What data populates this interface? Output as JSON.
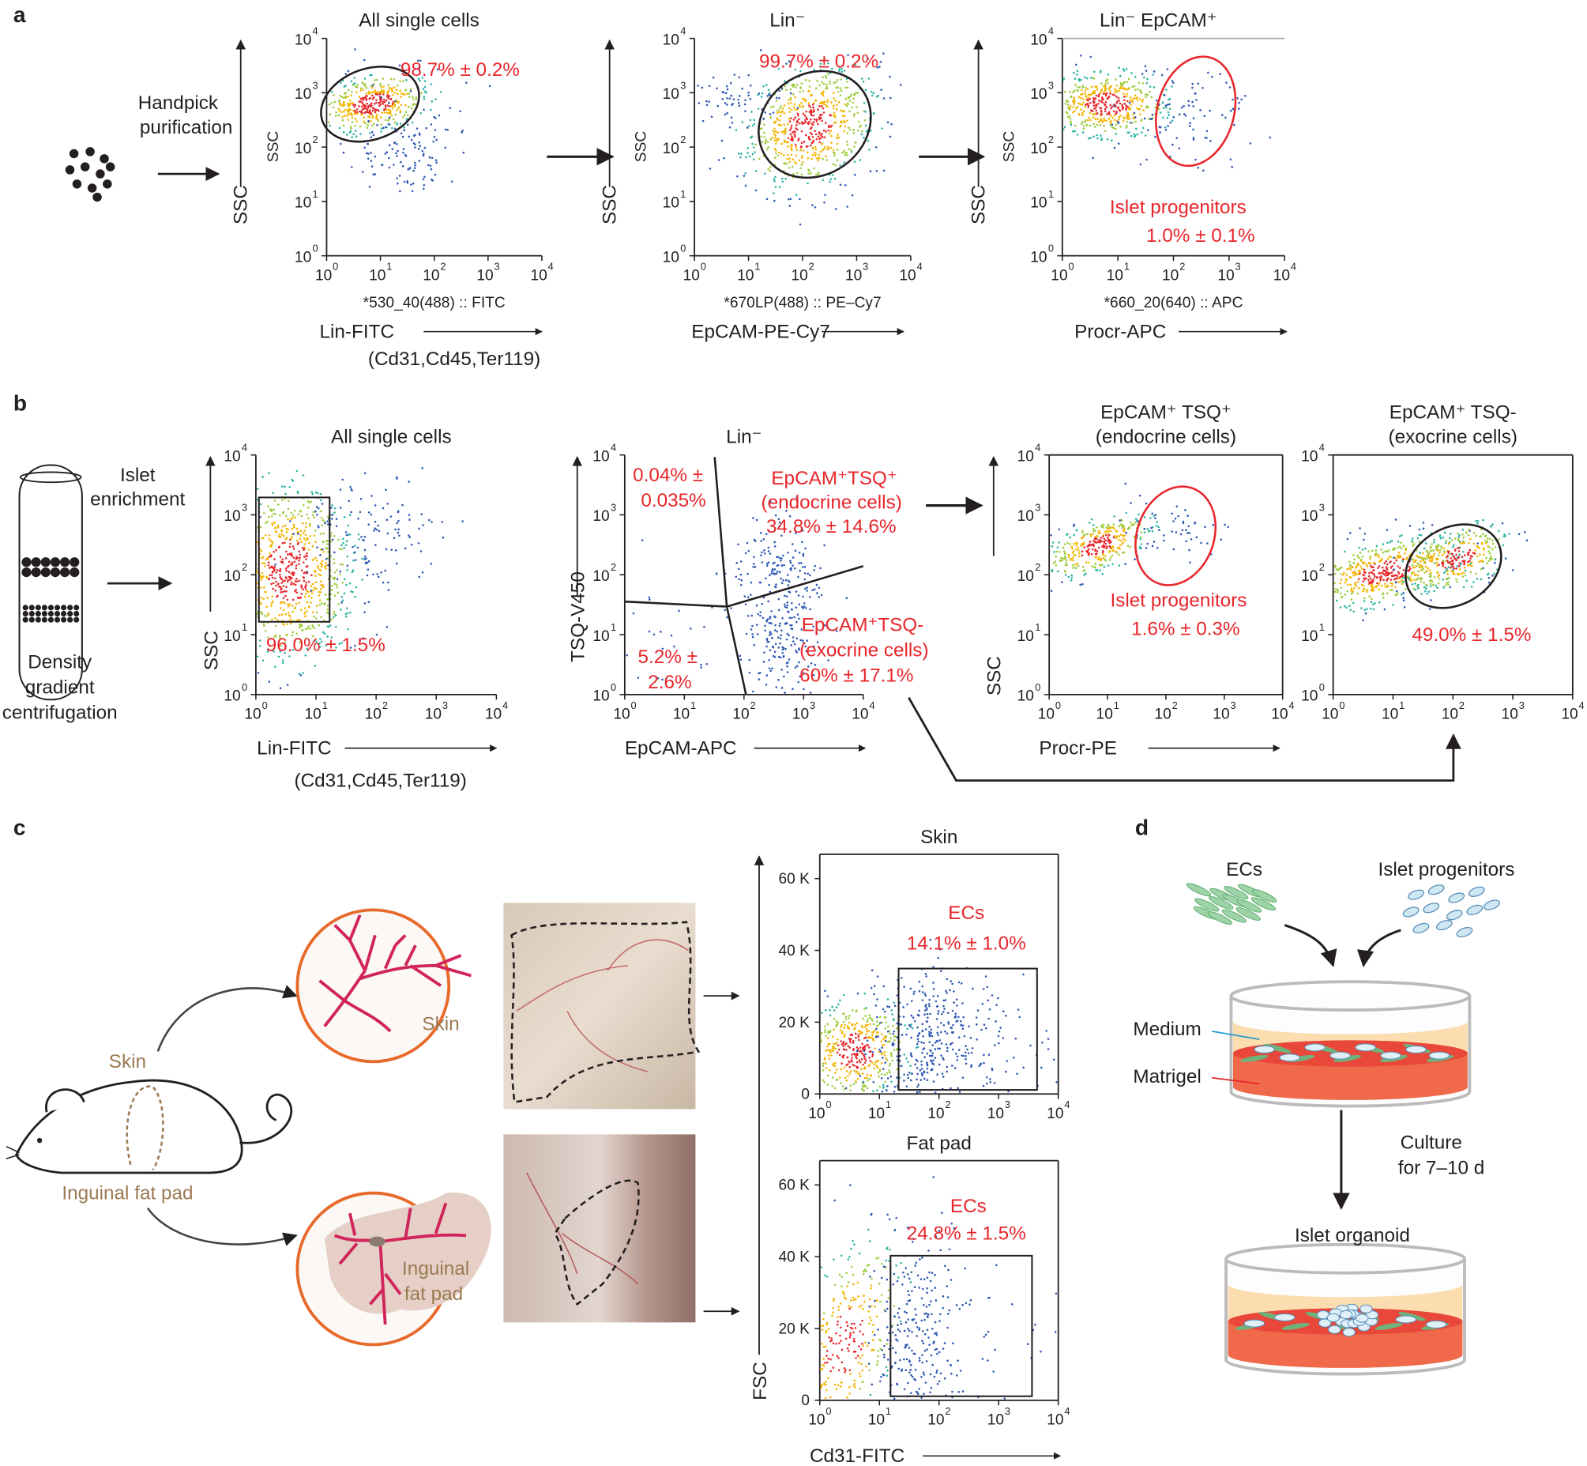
{
  "panel_labels": [
    "a",
    "b",
    "c",
    "d"
  ],
  "log_ticks": [
    {
      "base": "10",
      "exp": "0"
    },
    {
      "base": "10",
      "exp": "1"
    },
    {
      "base": "10",
      "exp": "2"
    },
    {
      "base": "10",
      "exp": "3"
    },
    {
      "base": "10",
      "exp": "4"
    }
  ],
  "linear_ticks": [
    "0",
    "20 K",
    "40 K",
    "60 K"
  ],
  "panel_a": {
    "step": [
      "Handpick",
      "purification"
    ],
    "y_axis": "SSC",
    "plots": [
      {
        "title": "All single cells",
        "y_small": "SSC",
        "channel": "*530_40(488) :: FITC",
        "marker": "Lin-FITC",
        "marker_sub": "(Cd31,Cd45,Ter119)",
        "gate": [
          "98.7% ± 0.2%"
        ]
      },
      {
        "title": "Lin⁻",
        "y_small": "SSC",
        "channel": "*670LP(488) :: PE–Cy7",
        "marker": "EpCAM-PE-Cy7",
        "gate": [
          "99.7% ± 0.2%"
        ]
      },
      {
        "title": "Lin⁻ EpCAM⁺",
        "y_small": "SSC",
        "channel": "*660_20(640) :: APC",
        "marker": "Procr-APC",
        "gate": [
          "Islet progenitors",
          "1.0% ± 0.1%"
        ]
      }
    ]
  },
  "panel_b": {
    "step": [
      "Islet",
      "enrichment"
    ],
    "tube": [
      "Density",
      "gradient",
      "centrifugation"
    ],
    "plots": [
      {
        "title": [
          "All single cells"
        ],
        "y_axis": "SSC",
        "marker": "Lin-FITC",
        "marker_sub": "(Cd31,Cd45,Ter119)",
        "gate": [
          "96.0% ± 1.5%"
        ]
      },
      {
        "title": [
          "Lin⁻"
        ],
        "y_axis": "TSQ-V450",
        "marker": "EpCAM-APC",
        "quadrants": [
          [
            "0.04% ±",
            "0.035%"
          ],
          [
            "EpCAM⁺TSQ⁺",
            "(endocrine cells)",
            "34.8% ± 14.6%"
          ],
          [
            "5.2% ±",
            "2.6%"
          ],
          [
            "EpCAM⁺TSQ-",
            "(exocrine cells)",
            "60% ± 17.1%"
          ]
        ]
      },
      {
        "title": [
          "EpCAM⁺ TSQ⁺",
          "(endocrine cells)"
        ],
        "y_axis": "SSC",
        "marker": "Procr-PE",
        "gate": [
          "Islet progenitors",
          "1.6% ± 0.3%"
        ]
      },
      {
        "title": [
          "EpCAM⁺ TSQ-",
          "(exocrine cells)"
        ],
        "gate": [
          "49.0% ± 1.5%"
        ]
      }
    ]
  },
  "panel_c": {
    "mouse_labels": [
      "Skin",
      "Inguinal fat pad"
    ],
    "circle_labels": [
      [
        "Skin"
      ],
      [
        "Inguinal",
        "fat pad"
      ]
    ],
    "y_axis": "FSC",
    "marker": "Cd31-FITC",
    "plots": [
      {
        "title": "Skin",
        "gate": [
          "ECs",
          "14.1% ± 1.0%"
        ]
      },
      {
        "title": "Fat pad",
        "gate": [
          "ECs",
          "24.8% ± 1.5%"
        ]
      }
    ]
  },
  "panel_d": {
    "inputs": [
      "ECs",
      "Islet progenitors"
    ],
    "layers": [
      "Medium",
      "Matrigel"
    ],
    "step": [
      "Culture",
      "for 7–10 d"
    ],
    "result": "Islet organoid"
  }
}
